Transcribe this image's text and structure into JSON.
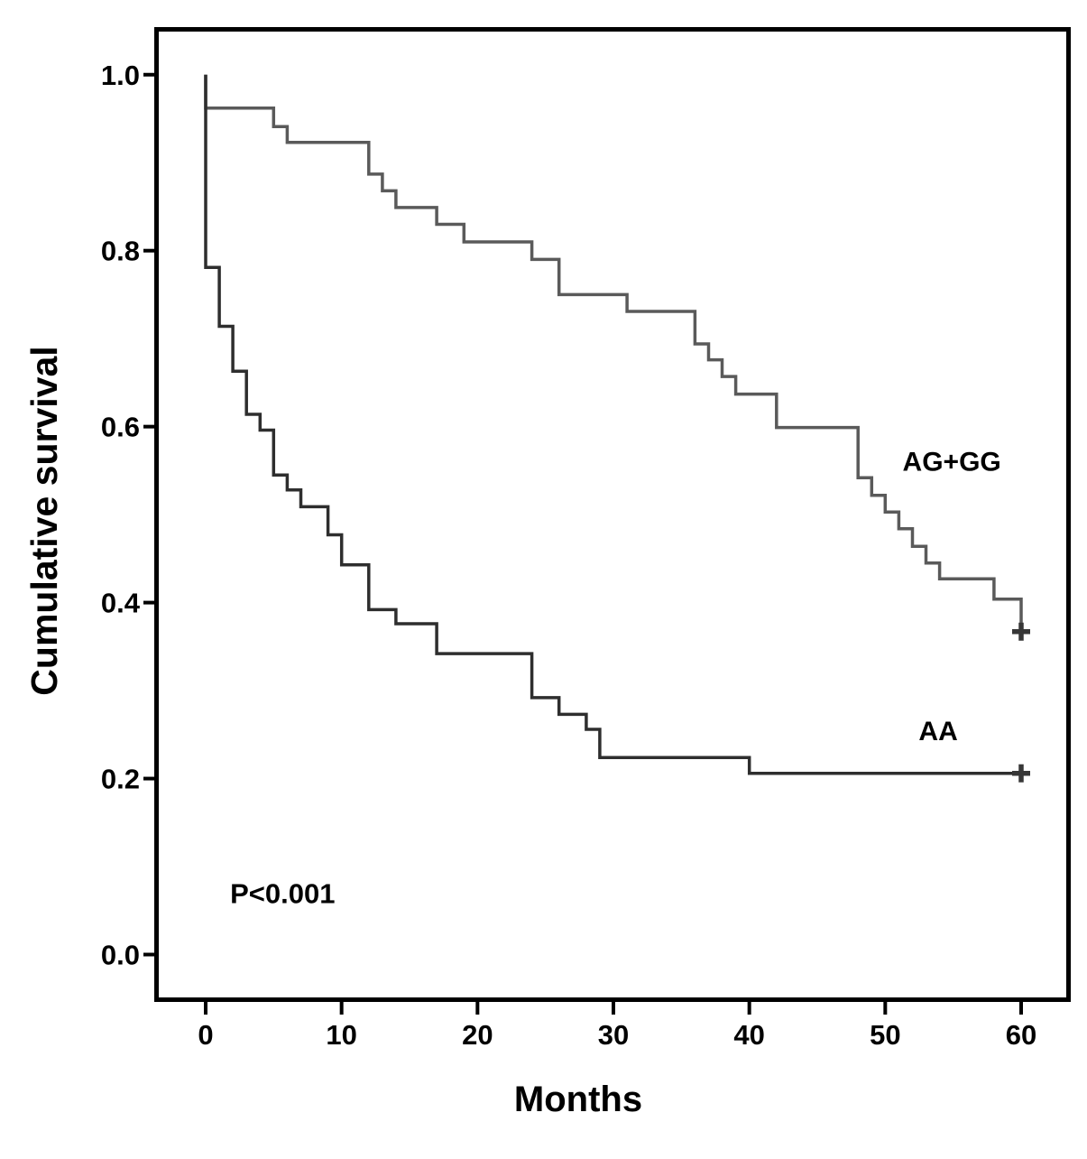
{
  "figure": {
    "background": "#ffffff",
    "frame_color": "#000000",
    "text_color": "#000000"
  },
  "chart_data": {
    "type": "line",
    "subtype": "kaplan_meier_step",
    "title": "",
    "xlabel": "Months",
    "ylabel": "Cumulative survival",
    "grid": false,
    "legend_position": "inline-labels",
    "xlim": [
      -3.6,
      63.5
    ],
    "ylim": [
      -0.051,
      1.051
    ],
    "x_ticks": {
      "values": [
        0,
        10,
        20,
        30,
        40,
        50,
        60
      ],
      "labels": [
        "0",
        "10",
        "20",
        "30",
        "40",
        "50",
        "60"
      ]
    },
    "y_ticks": {
      "values": [
        0.0,
        0.2,
        0.4,
        0.6,
        0.8,
        1.0
      ],
      "labels": [
        "0.0",
        "0.2",
        "0.4",
        "0.6",
        "0.8",
        "1.0"
      ]
    },
    "annotation": {
      "text": "P<0.001",
      "x": 1.8,
      "y": 0.07
    },
    "series": [
      {
        "name": "AG+GG",
        "color": "#5a5a5a",
        "label_x": 54.9,
        "label_y": 0.56,
        "points": [
          [
            0,
            1.0
          ],
          [
            0,
            0.962
          ],
          [
            5,
            0.962
          ],
          [
            5,
            0.941
          ],
          [
            6,
            0.941
          ],
          [
            6,
            0.923
          ],
          [
            12,
            0.923
          ],
          [
            12,
            0.887
          ],
          [
            13,
            0.887
          ],
          [
            13,
            0.868
          ],
          [
            14,
            0.868
          ],
          [
            14,
            0.849
          ],
          [
            17,
            0.849
          ],
          [
            17,
            0.83
          ],
          [
            19,
            0.83
          ],
          [
            19,
            0.81
          ],
          [
            24,
            0.81
          ],
          [
            24,
            0.79
          ],
          [
            26,
            0.79
          ],
          [
            26,
            0.75
          ],
          [
            31,
            0.75
          ],
          [
            31,
            0.731
          ],
          [
            36,
            0.731
          ],
          [
            36,
            0.694
          ],
          [
            37,
            0.694
          ],
          [
            37,
            0.676
          ],
          [
            38,
            0.676
          ],
          [
            38,
            0.657
          ],
          [
            39,
            0.657
          ],
          [
            39,
            0.637
          ],
          [
            42,
            0.637
          ],
          [
            42,
            0.599
          ],
          [
            48,
            0.599
          ],
          [
            48,
            0.542
          ],
          [
            49,
            0.542
          ],
          [
            49,
            0.522
          ],
          [
            50,
            0.522
          ],
          [
            50,
            0.503
          ],
          [
            51,
            0.503
          ],
          [
            51,
            0.484
          ],
          [
            52,
            0.484
          ],
          [
            52,
            0.464
          ],
          [
            53,
            0.464
          ],
          [
            53,
            0.445
          ],
          [
            54,
            0.445
          ],
          [
            54,
            0.427
          ],
          [
            58,
            0.427
          ],
          [
            58,
            0.404
          ],
          [
            60,
            0.404
          ],
          [
            60,
            0.367
          ]
        ],
        "censored": [
          [
            60,
            0.367
          ]
        ]
      },
      {
        "name": "AA",
        "color": "#2e2e2e",
        "label_x": 53.9,
        "label_y": 0.254,
        "points": [
          [
            0,
            1.0
          ],
          [
            0,
            0.781
          ],
          [
            1,
            0.781
          ],
          [
            1,
            0.714
          ],
          [
            2,
            0.714
          ],
          [
            2,
            0.663
          ],
          [
            3,
            0.663
          ],
          [
            3,
            0.614
          ],
          [
            4,
            0.614
          ],
          [
            4,
            0.596
          ],
          [
            5,
            0.596
          ],
          [
            5,
            0.545
          ],
          [
            6,
            0.545
          ],
          [
            6,
            0.528
          ],
          [
            7,
            0.528
          ],
          [
            7,
            0.509
          ],
          [
            9,
            0.509
          ],
          [
            9,
            0.477
          ],
          [
            10,
            0.477
          ],
          [
            10,
            0.443
          ],
          [
            12,
            0.443
          ],
          [
            12,
            0.392
          ],
          [
            14,
            0.392
          ],
          [
            14,
            0.376
          ],
          [
            17,
            0.376
          ],
          [
            17,
            0.342
          ],
          [
            24,
            0.342
          ],
          [
            24,
            0.292
          ],
          [
            26,
            0.292
          ],
          [
            26,
            0.273
          ],
          [
            28,
            0.273
          ],
          [
            28,
            0.256
          ],
          [
            29,
            0.256
          ],
          [
            29,
            0.224
          ],
          [
            40,
            0.224
          ],
          [
            40,
            0.206
          ],
          [
            60,
            0.206
          ]
        ],
        "censored": [
          [
            60,
            0.206
          ]
        ]
      }
    ]
  }
}
